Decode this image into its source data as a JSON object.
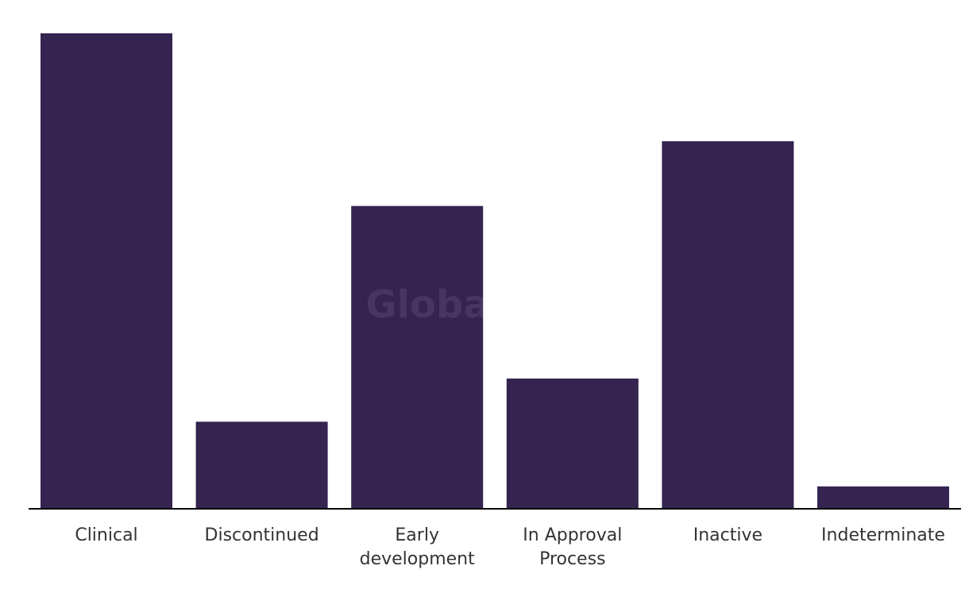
{
  "watermark": "GlobalData",
  "colors": {
    "bar": "#352350",
    "axis": "#000000",
    "text": "#333333"
  },
  "chart_data": {
    "type": "bar",
    "title": "",
    "xlabel": "",
    "ylabel": "",
    "categories": [
      [
        "Clinical"
      ],
      [
        "Discontinued"
      ],
      [
        "Early",
        "development"
      ],
      [
        "In Approval",
        "Process"
      ],
      [
        "Inactive"
      ],
      [
        "Indeterminate"
      ]
    ],
    "values": [
      22,
      4,
      14,
      6,
      17,
      1
    ],
    "ylim": [
      0,
      22
    ],
    "grid": false,
    "legend": "none"
  }
}
